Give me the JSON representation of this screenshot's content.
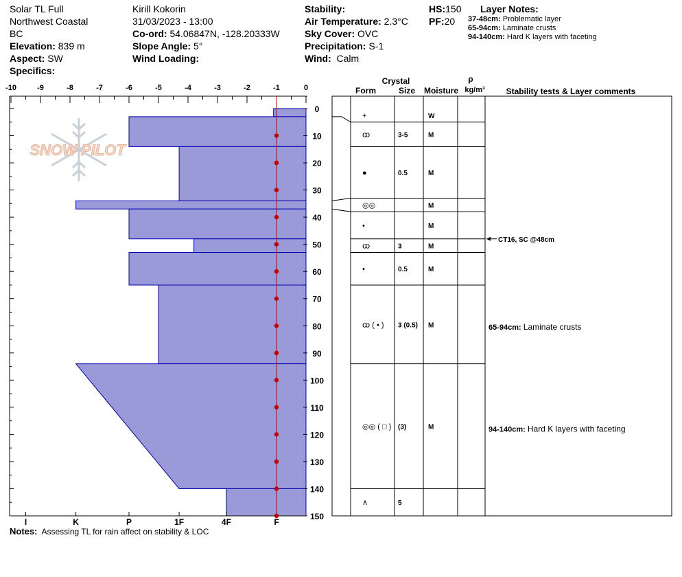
{
  "header": {
    "title": "Solar TL Full",
    "region": "Northwest Coastal",
    "province": "BC",
    "elevation_label": "Elevation:",
    "elevation": "839 m",
    "aspect_label": "Aspect:",
    "aspect": "SW",
    "specifics_label": "Specifics:",
    "observer": "Kirill Kokorin",
    "datetime": "31/03/2023 - 13:00",
    "coord_label": "Co-ord:",
    "coord": "54.06847N, -128.20333W",
    "slope_label": "Slope Angle:",
    "slope": "5°",
    "wind_loading_label": "Wind Loading:",
    "stability_label": "Stability:",
    "air_temp_label": "Air Temperature:",
    "air_temp": "2.3°C",
    "sky_label": "Sky Cover:",
    "sky": "OVC",
    "precip_label": "Precipitation:",
    "precip": "S-1",
    "wind_label": "Wind:",
    "wind": "Calm",
    "hs_label": "HS:",
    "hs": "150",
    "pf_label": "PF:",
    "pf": "20"
  },
  "layer_notes": {
    "title": "Layer Notes:",
    "items": [
      {
        "range": "37-48cm:",
        "text": "Problematic layer"
      },
      {
        "range": "65-94cm:",
        "text": "Laminate crusts"
      },
      {
        "range": "94-140cm:",
        "text": "Hard K layers with faceting"
      }
    ]
  },
  "logo_text": "SNOW PILOT",
  "notes": {
    "label": "Notes:",
    "text": "Assessing TL for rain affect on stability & LOC"
  },
  "columns": {
    "crystal": "Crystal",
    "form": "Form",
    "size": "Size",
    "moisture": "Moisture",
    "rho": "ρ",
    "density": "kg/m³",
    "comments": "Stability tests & Layer comments"
  },
  "colors": {
    "hardness_fill": "#9a9ad8",
    "hardness_stroke": "#0000b0",
    "temp_profile": "#c00000"
  },
  "chart_data": {
    "type": "snow-profile",
    "top_axis": {
      "min": -10,
      "max": 0,
      "ticks": [
        "-10",
        "-9",
        "-8",
        "-7",
        "-6",
        "-5",
        "-4",
        "-3",
        "-2",
        "-1",
        "0"
      ]
    },
    "hardness_scale": {
      "labels": [
        "I",
        "K",
        "P",
        "1F",
        "4F",
        "F"
      ],
      "values": [
        -9.5,
        -7.8,
        -6,
        -4.3,
        -2.7,
        -1
      ]
    },
    "depth_axis": {
      "min": 0,
      "max": 150,
      "ticks": [
        0,
        10,
        20,
        30,
        40,
        50,
        60,
        70,
        80,
        90,
        100,
        110,
        120,
        130,
        140,
        150
      ]
    },
    "hardness_layers": [
      {
        "top": 0,
        "bottom": 3,
        "hardness": "F",
        "value": -1.1
      },
      {
        "top": 3,
        "bottom": 14,
        "hardness": "P",
        "value": -6
      },
      {
        "top": 14,
        "bottom": 34,
        "hardness": "4F-1F",
        "value": -4.3
      },
      {
        "top": 34,
        "bottom": 37,
        "hardness": "K",
        "value": -7.8
      },
      {
        "top": 37,
        "bottom": 48,
        "hardness": "P",
        "value": -6
      },
      {
        "top": 48,
        "bottom": 53,
        "hardness": "4F-1F",
        "value": -3.8
      },
      {
        "top": 53,
        "bottom": 65,
        "hardness": "P",
        "value": -6
      },
      {
        "top": 65,
        "bottom": 94,
        "hardness": "1F",
        "value": -5
      },
      {
        "top": 94,
        "bottom": 140,
        "hardness": "K-4F",
        "value_top": -7.8,
        "value_bottom": -4.3
      },
      {
        "top": 140,
        "bottom": 150,
        "hardness": "4F",
        "value": -2.7
      }
    ],
    "temperature_profile": [
      {
        "depth": 10,
        "temp": -1
      },
      {
        "depth": 20,
        "temp": -1
      },
      {
        "depth": 30,
        "temp": -1
      },
      {
        "depth": 40,
        "temp": -1
      },
      {
        "depth": 50,
        "temp": -1
      },
      {
        "depth": 60,
        "temp": -1
      },
      {
        "depth": 70,
        "temp": -1
      },
      {
        "depth": 80,
        "temp": -1
      },
      {
        "depth": 90,
        "temp": -1
      },
      {
        "depth": 100,
        "temp": -1
      },
      {
        "depth": 110,
        "temp": -1
      },
      {
        "depth": 120,
        "temp": -1
      },
      {
        "depth": 130,
        "temp": -1
      },
      {
        "depth": 140,
        "temp": -1
      },
      {
        "depth": 150,
        "temp": -1
      }
    ],
    "layers": [
      {
        "top": 0,
        "bottom": 5,
        "form": "+",
        "size": "",
        "moisture": "W"
      },
      {
        "top": 5,
        "bottom": 14,
        "form": "ꝏ",
        "size": "3-5",
        "moisture": "M"
      },
      {
        "top": 14,
        "bottom": 33,
        "form": "●",
        "size": "0.5",
        "moisture": "M"
      },
      {
        "top": 33,
        "bottom": 38,
        "form": "◎◎",
        "size": "",
        "moisture": "M"
      },
      {
        "top": 38,
        "bottom": 48,
        "form": "•",
        "size": "",
        "moisture": "M"
      },
      {
        "top": 48,
        "bottom": 53,
        "form": "ꝏ",
        "size": "3",
        "moisture": "M"
      },
      {
        "top": 53,
        "bottom": 65,
        "form": "•",
        "size": "0.5",
        "moisture": "M"
      },
      {
        "top": 65,
        "bottom": 94,
        "form": "ꝏ ( • )",
        "size": "3 (0.5)",
        "moisture": "M"
      },
      {
        "top": 94,
        "bottom": 140,
        "form": "◎◎ ( □ )",
        "size": "(3)",
        "moisture": "M"
      },
      {
        "top": 140,
        "bottom": 150,
        "form": "∧",
        "size": "5",
        "moisture": ""
      }
    ],
    "comments": [
      {
        "depth": 48,
        "text": "CT16, SC @48cm",
        "arrow": true
      },
      {
        "depth": 80.5,
        "range": "65-94cm:",
        "text": "Laminate crusts"
      },
      {
        "depth": 118,
        "range": "94-140cm:",
        "text": "Hard K layers with faceting"
      }
    ]
  }
}
